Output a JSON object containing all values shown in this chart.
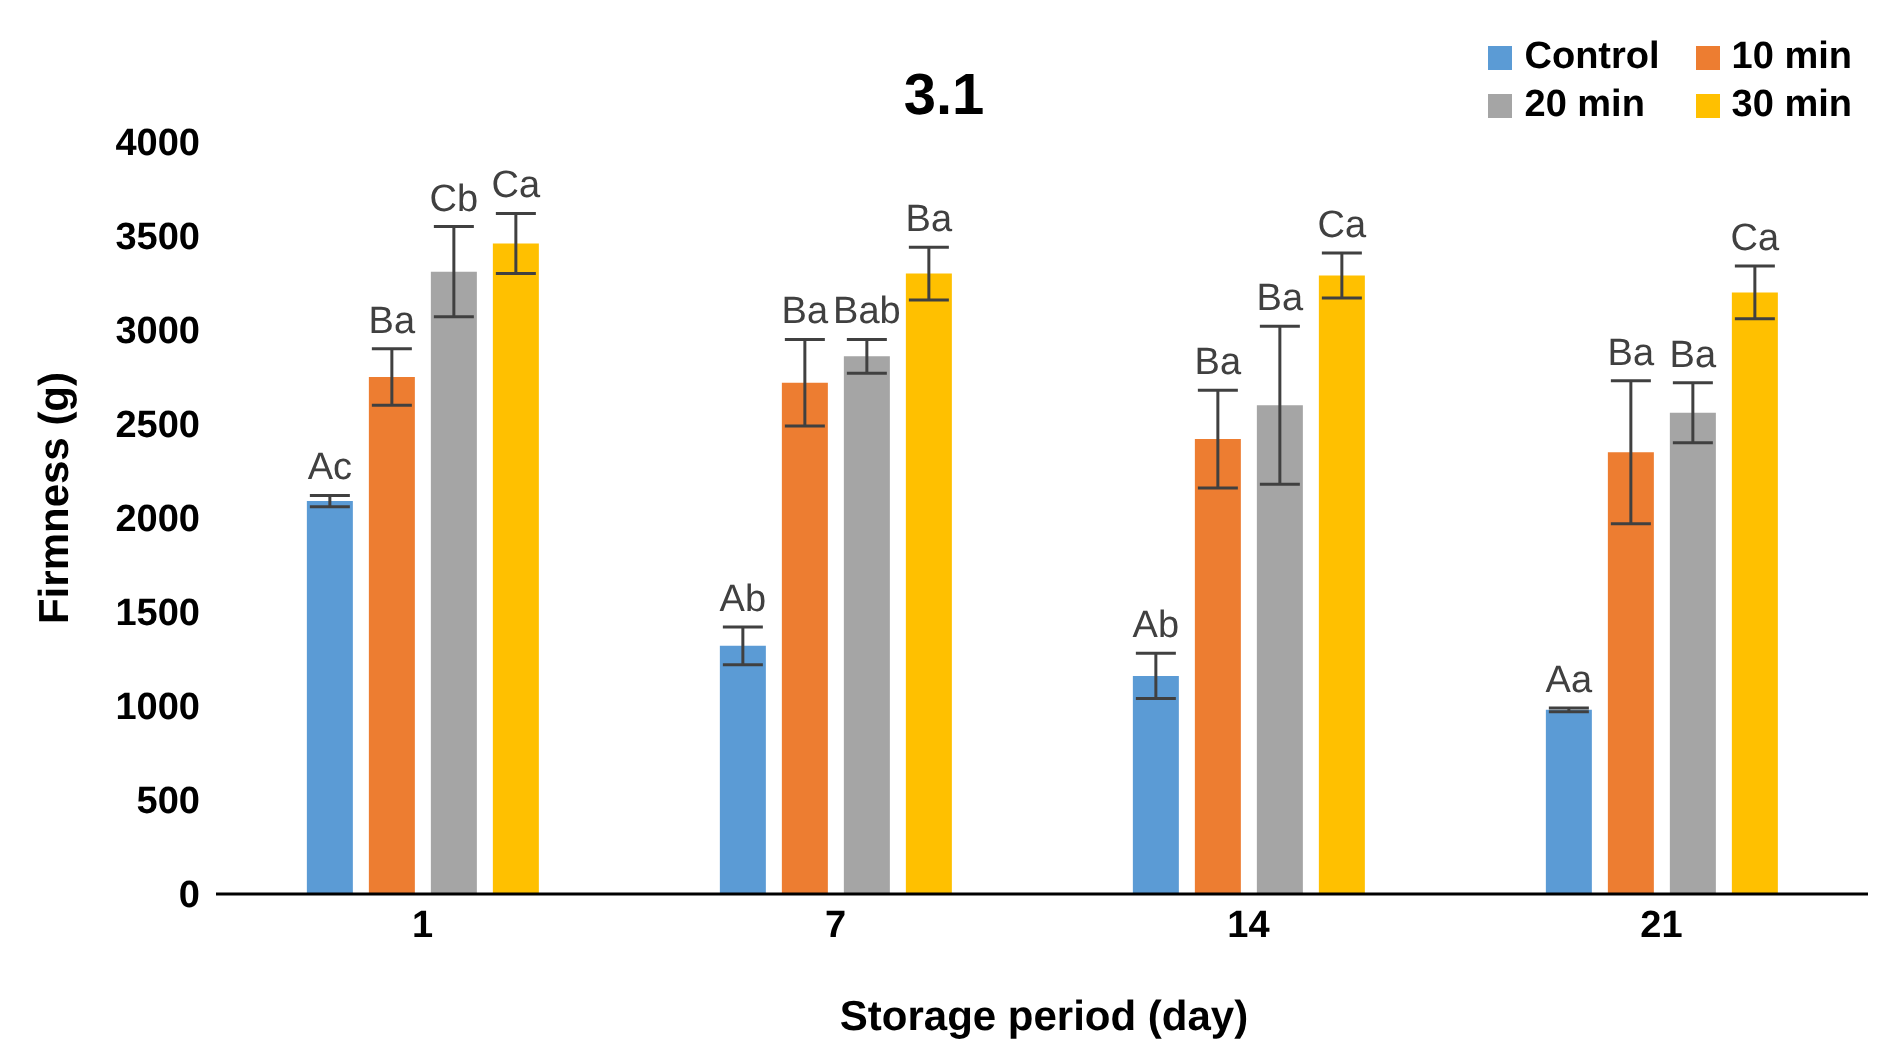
{
  "chart_data": {
    "type": "bar",
    "title": "3.1",
    "xlabel": "Storage period (day)",
    "ylabel": "Firmness (g)",
    "categories": [
      "1",
      "7",
      "14",
      "21"
    ],
    "series": [
      {
        "name": "Control",
        "color": "#5b9bd5",
        "values": [
          2090,
          1320,
          1160,
          980
        ],
        "errors": [
          30,
          100,
          120,
          10
        ],
        "value_labels": [
          "Ac",
          "Ab",
          "Ab",
          "Aa"
        ]
      },
      {
        "name": "10 min",
        "color": "#ed7d31",
        "values": [
          2750,
          2720,
          2420,
          2350
        ],
        "errors": [
          150,
          230,
          260,
          380
        ],
        "value_labels": [
          "Ba",
          "Ba",
          "Ba",
          "Ba"
        ]
      },
      {
        "name": "20 min",
        "color": "#a5a5a5",
        "values": [
          3310,
          2860,
          2600,
          2560
        ],
        "errors": [
          240,
          90,
          420,
          160
        ],
        "value_labels": [
          "Cb",
          "Bab",
          "Ba",
          "Ba"
        ]
      },
      {
        "name": "30 min",
        "color": "#ffc000",
        "values": [
          3460,
          3300,
          3290,
          3200
        ],
        "errors": [
          160,
          140,
          120,
          140
        ],
        "value_labels": [
          "Ca",
          "Ba",
          "Ca",
          "Ca"
        ]
      }
    ],
    "ylim": [
      0,
      4000
    ],
    "yticks": [
      0,
      500,
      1000,
      1500,
      2000,
      2500,
      3000,
      3500,
      4000
    ],
    "grid": false,
    "legend": "top right"
  }
}
